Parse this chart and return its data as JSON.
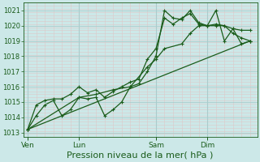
{
  "bg_color": "#cce8e8",
  "grid_major_color": "#aacccc",
  "grid_minor_color": "#ddc8c8",
  "line_color": "#1a5c1a",
  "xlabel": "Pression niveau de la mer( hPa )",
  "xlabel_fontsize": 8,
  "yticks": [
    1013,
    1014,
    1015,
    1016,
    1017,
    1018,
    1019,
    1020,
    1021
  ],
  "ylim": [
    1012.7,
    1021.5
  ],
  "xtick_labels": [
    "Ven",
    "Lun",
    "Sam",
    "Dim"
  ],
  "xtick_positions": [
    0,
    36,
    90,
    126
  ],
  "xlim": [
    -3,
    161
  ],
  "vlines": [
    0,
    36,
    90,
    126
  ],
  "series": [
    [
      0,
      1013.2,
      6,
      1014.1,
      12,
      1014.8,
      18,
      1015.1,
      24,
      1014.1,
      30,
      1014.5,
      36,
      1015.3,
      42,
      1015.2,
      48,
      1015.3,
      54,
      1014.1,
      60,
      1014.5,
      66,
      1015.0,
      72,
      1016.0,
      78,
      1016.2,
      84,
      1017.0,
      90,
      1018.0,
      96,
      1021.0,
      102,
      1020.5,
      108,
      1020.4,
      114,
      1021.0,
      120,
      1020.2,
      126,
      1020.0,
      132,
      1021.0,
      138,
      1019.0,
      144,
      1019.8,
      150,
      1018.8,
      156,
      1019.0
    ],
    [
      0,
      1013.2,
      6,
      1014.8,
      12,
      1015.1,
      18,
      1015.2,
      24,
      1015.2,
      30,
      1015.5,
      36,
      1016.0,
      42,
      1015.6,
      48,
      1015.8,
      54,
      1015.3,
      60,
      1015.7,
      66,
      1016.0,
      72,
      1016.3,
      78,
      1016.5,
      84,
      1017.8,
      90,
      1018.5,
      96,
      1020.5,
      102,
      1020.1,
      108,
      1020.5,
      114,
      1020.8,
      120,
      1020.1,
      126,
      1020.0,
      132,
      1020.0,
      138,
      1020.0,
      144,
      1019.8,
      150,
      1019.7,
      156,
      1019.7
    ],
    [
      0,
      1013.2,
      36,
      1015.3,
      48,
      1015.5,
      60,
      1015.8,
      72,
      1016.0,
      84,
      1017.3,
      90,
      1017.8,
      96,
      1018.5,
      108,
      1018.8,
      114,
      1019.5,
      120,
      1020.0,
      126,
      1020.0,
      132,
      1020.1,
      138,
      1020.0,
      144,
      1019.5,
      150,
      1019.2,
      156,
      1019.0
    ],
    [
      0,
      1013.2,
      156,
      1019.0
    ]
  ],
  "series_xy": [
    {
      "x": [
        0,
        6,
        12,
        18,
        24,
        30,
        36,
        42,
        48,
        54,
        60,
        66,
        72,
        78,
        84,
        90,
        96,
        102,
        108,
        114,
        120,
        126,
        132,
        138,
        144,
        150,
        156
      ],
      "y": [
        1013.2,
        1014.1,
        1014.8,
        1015.1,
        1014.1,
        1014.5,
        1015.3,
        1015.2,
        1015.3,
        1014.1,
        1014.5,
        1015.0,
        1016.0,
        1016.2,
        1017.0,
        1018.0,
        1021.0,
        1020.5,
        1020.4,
        1021.0,
        1020.2,
        1020.0,
        1021.0,
        1019.0,
        1019.8,
        1018.8,
        1019.0
      ]
    },
    {
      "x": [
        0,
        6,
        12,
        18,
        24,
        30,
        36,
        42,
        48,
        54,
        60,
        66,
        72,
        78,
        84,
        90,
        96,
        102,
        108,
        114,
        120,
        126,
        132,
        138,
        144,
        150,
        156
      ],
      "y": [
        1013.2,
        1014.8,
        1015.1,
        1015.2,
        1015.2,
        1015.5,
        1016.0,
        1015.6,
        1015.8,
        1015.3,
        1015.7,
        1016.0,
        1016.3,
        1016.5,
        1017.8,
        1018.5,
        1020.5,
        1020.1,
        1020.5,
        1020.8,
        1020.1,
        1020.0,
        1020.0,
        1020.0,
        1019.8,
        1019.7,
        1019.7
      ]
    },
    {
      "x": [
        0,
        36,
        48,
        60,
        72,
        84,
        90,
        96,
        108,
        114,
        120,
        126,
        132,
        138,
        144,
        150,
        156
      ],
      "y": [
        1013.2,
        1015.3,
        1015.5,
        1015.8,
        1016.0,
        1017.3,
        1017.8,
        1018.5,
        1018.8,
        1019.5,
        1020.0,
        1020.0,
        1020.1,
        1020.0,
        1019.5,
        1019.2,
        1019.0
      ]
    },
    {
      "x": [
        0,
        156
      ],
      "y": [
        1013.2,
        1019.0
      ]
    }
  ]
}
